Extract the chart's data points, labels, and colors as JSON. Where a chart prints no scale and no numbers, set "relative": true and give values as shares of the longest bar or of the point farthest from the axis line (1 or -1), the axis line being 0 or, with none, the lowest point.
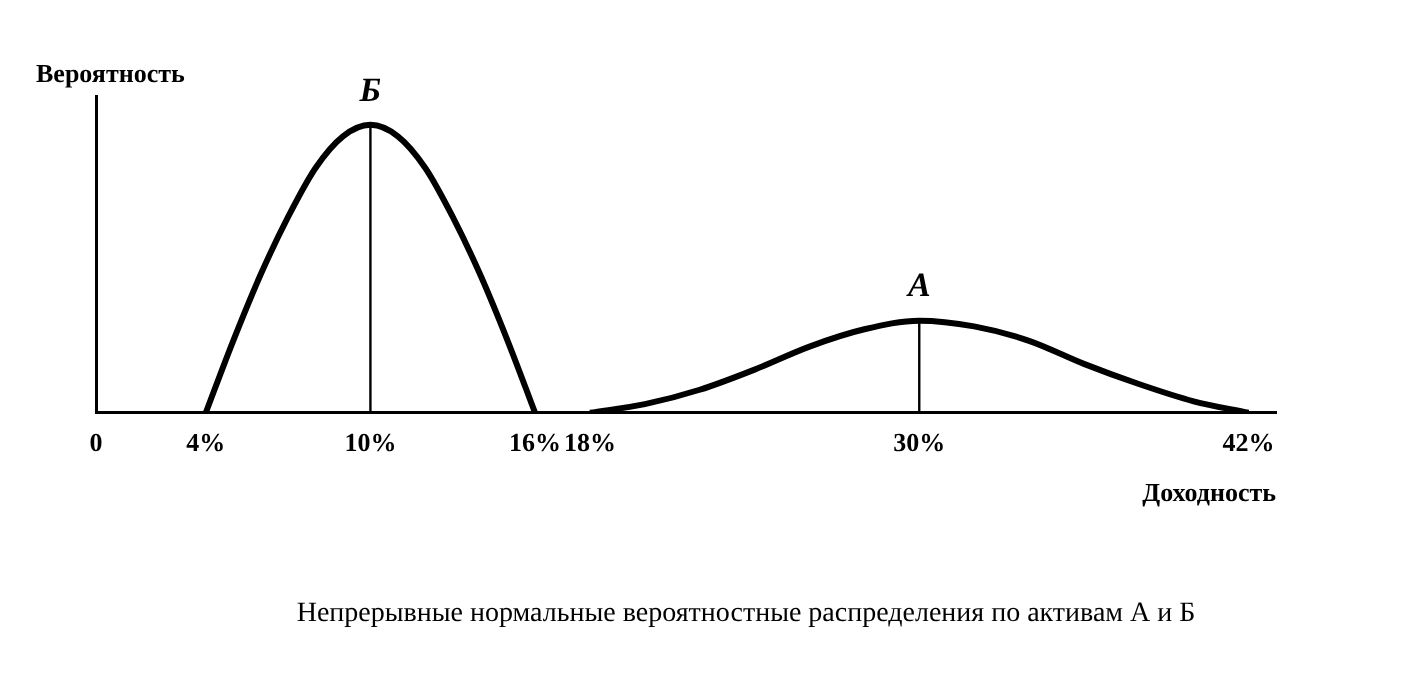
{
  "chart_data": {
    "type": "line",
    "relative": true,
    "ylabel": "Вероятность",
    "xlabel": "Доходность",
    "annotations": [
      "Непрерывные нормальные вероятностные распределения по активам А и Б"
    ],
    "xlim": [
      0,
      43
    ],
    "xticks": [
      0,
      {
        "value": 4,
        "label": "4%"
      },
      {
        "value": 10,
        "label": "10%"
      },
      {
        "value": 16,
        "label": "16%"
      },
      {
        "value": 18,
        "label": "18%"
      },
      {
        "value": 30,
        "label": "30%"
      },
      {
        "value": 42,
        "label": "42%"
      }
    ],
    "grid": false,
    "legend": false,
    "marker": "none",
    "line_style": "solid",
    "series": [
      {
        "name": "Б",
        "color": "#000000",
        "x": [
          4,
          5,
          6,
          7,
          8,
          9,
          10,
          11,
          12,
          13,
          14,
          15,
          16
        ],
        "values": [
          0,
          0.25,
          0.48,
          0.68,
          0.85,
          0.96,
          1,
          0.96,
          0.85,
          0.68,
          0.48,
          0.25,
          0
        ]
      },
      {
        "name": "А",
        "color": "#000000",
        "x": [
          18,
          20,
          22,
          24,
          26,
          28,
          30,
          32,
          34,
          36,
          38,
          40,
          42
        ],
        "values": [
          0,
          0.03,
          0.08,
          0.15,
          0.23,
          0.29,
          0.32,
          0.3,
          0.25,
          0.17,
          0.1,
          0.04,
          0
        ]
      }
    ],
    "ref_lines": [
      {
        "axis": "x",
        "value": 10
      },
      {
        "axis": "x",
        "value": 30
      }
    ]
  }
}
